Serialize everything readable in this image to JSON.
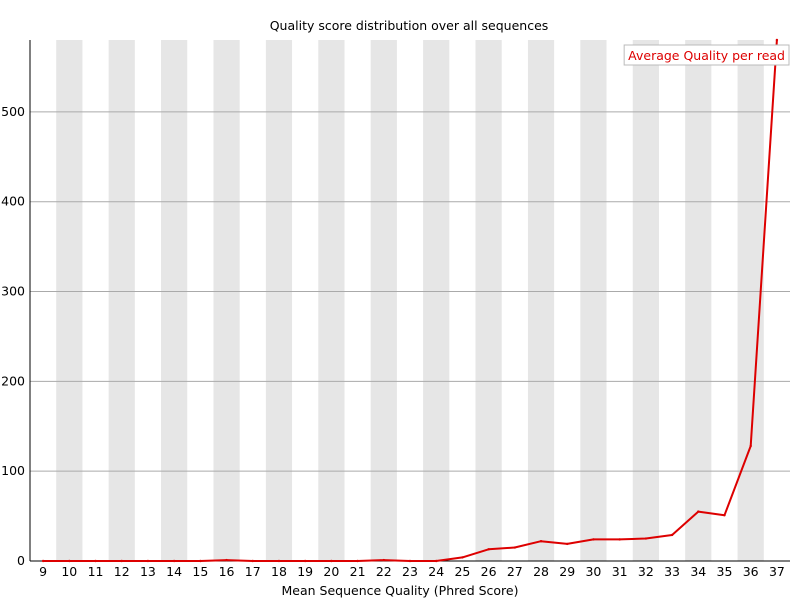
{
  "chart_data": {
    "type": "line",
    "title": "Quality score distribution over all sequences",
    "xlabel": "Mean Sequence Quality (Phred Score)",
    "ylabel": "",
    "x": [
      9,
      10,
      11,
      12,
      13,
      14,
      15,
      16,
      17,
      18,
      19,
      20,
      21,
      22,
      23,
      24,
      25,
      26,
      27,
      28,
      29,
      30,
      31,
      32,
      33,
      34,
      35,
      36,
      37
    ],
    "x_tick_labels": [
      "9",
      "10",
      "11",
      "12",
      "13",
      "14",
      "15",
      "16",
      "17",
      "18",
      "19",
      "20",
      "21",
      "22",
      "23",
      "24",
      "25",
      "26",
      "27",
      "28",
      "29",
      "30",
      "31",
      "32",
      "33",
      "34",
      "35",
      "36",
      "37"
    ],
    "y_ticks": [
      0,
      100,
      200,
      300,
      400,
      500
    ],
    "y_tick_labels": [
      "0",
      "100",
      "200",
      "300",
      "400",
      "500"
    ],
    "ylim": [
      0,
      580
    ],
    "grid": true,
    "legend_position": "top-right",
    "series": [
      {
        "name": "Average Quality per read",
        "color": "#dd0000",
        "values": [
          0,
          0,
          0,
          0,
          0,
          0,
          0,
          1,
          0,
          0,
          0,
          0,
          0,
          1,
          0,
          0,
          4,
          13,
          15,
          22,
          19,
          24,
          24,
          25,
          29,
          55,
          51,
          128,
          580
        ]
      }
    ],
    "band_color": "#e6e6e6",
    "grid_color": "#aaaaaa",
    "axis_color": "#000000"
  }
}
